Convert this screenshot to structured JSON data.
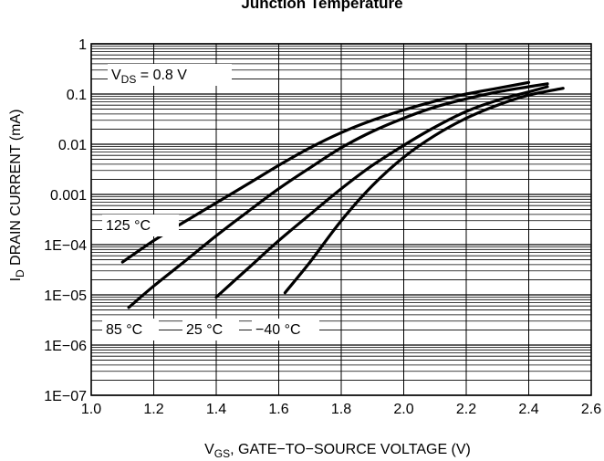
{
  "chart_data": {
    "type": "line",
    "title": "Junction Temperature",
    "xlabel": {
      "main": "V",
      "sub": "GS",
      "rest": ", GATE−TO−SOURCE VOLTAGE (V)"
    },
    "ylabel": {
      "main": "I",
      "sub": "D",
      "rest": " DRAIN CURRENT (mA)"
    },
    "xlim": [
      1.0,
      2.6
    ],
    "ylim": [
      1e-07,
      1
    ],
    "yscale": "log",
    "grid": true,
    "x_ticks": [
      "1.0",
      "1.2",
      "1.4",
      "1.6",
      "1.8",
      "2.0",
      "2.2",
      "2.4",
      "2.6"
    ],
    "y_ticks": [
      "1",
      "0.1",
      "0.01",
      "0.001",
      "1E−04",
      "1E−05",
      "1E−06",
      "1E−07"
    ],
    "condition": {
      "main": "V",
      "sub": "DS",
      "rest": " = 0.8 V"
    },
    "series": [
      {
        "name": "125 °C",
        "x": [
          1.1,
          1.2,
          1.3,
          1.4,
          1.5,
          1.6,
          1.7,
          1.8,
          1.9,
          2.0,
          2.1,
          2.2,
          2.3,
          2.4
        ],
        "y": [
          4.5e-05,
          0.00012,
          0.00029,
          0.00068,
          0.0016,
          0.0038,
          0.0085,
          0.017,
          0.03,
          0.048,
          0.072,
          0.1,
          0.13,
          0.17
        ]
      },
      {
        "name": "85 °C",
        "x": [
          1.12,
          1.2,
          1.3,
          1.4,
          1.5,
          1.6,
          1.7,
          1.8,
          1.9,
          2.0,
          2.1,
          2.2,
          2.3,
          2.4,
          2.46
        ],
        "y": [
          5.6e-06,
          1.5e-05,
          4.7e-05,
          0.00015,
          0.00045,
          0.0013,
          0.0034,
          0.0085,
          0.018,
          0.033,
          0.055,
          0.08,
          0.11,
          0.14,
          0.16
        ]
      },
      {
        "name": "25 °C",
        "x": [
          1.4,
          1.5,
          1.6,
          1.7,
          1.8,
          1.9,
          2.0,
          2.1,
          2.2,
          2.3,
          2.4,
          2.46
        ],
        "y": [
          9e-06,
          3.3e-05,
          0.00012,
          0.0004,
          0.0013,
          0.0038,
          0.0095,
          0.022,
          0.045,
          0.075,
          0.11,
          0.14
        ]
      },
      {
        "name": "−40 °C",
        "x": [
          1.62,
          1.7,
          1.8,
          1.9,
          2.0,
          2.1,
          2.2,
          2.3,
          2.4,
          2.51
        ],
        "y": [
          1.1e-05,
          4.5e-05,
          0.0003,
          0.0015,
          0.0055,
          0.015,
          0.033,
          0.06,
          0.095,
          0.13
        ]
      }
    ]
  }
}
